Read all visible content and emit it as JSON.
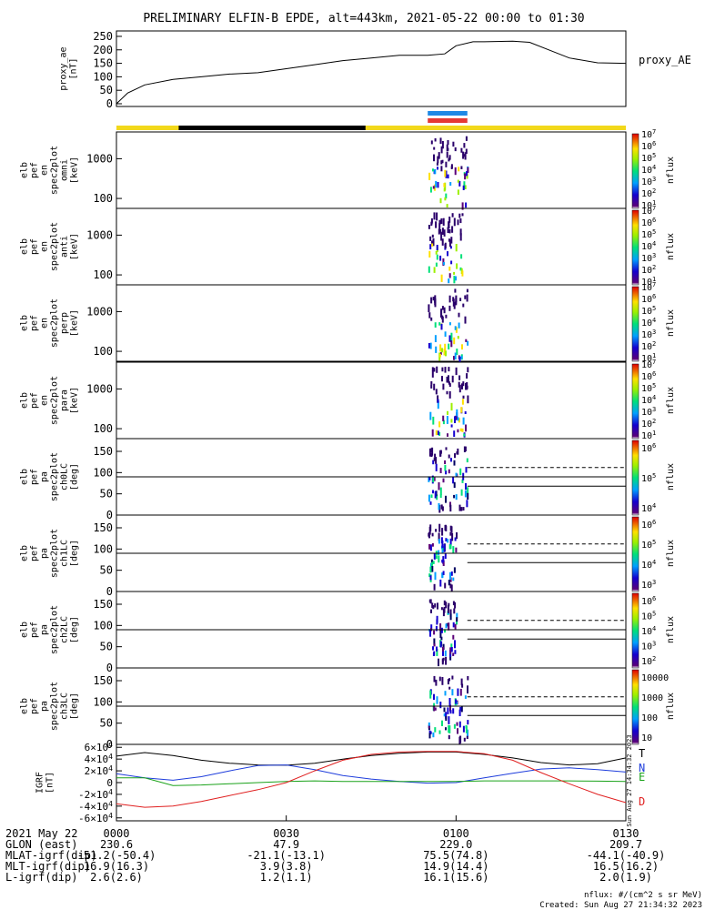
{
  "title": "PRELIMINARY ELFIN-B EPDE, alt=443km, 2021-05-22 00:00 to 01:30",
  "footer": {
    "units": "nflux: #/(cm^2 s sr MeV)",
    "created": "Created: Sun Aug 27 21:34:32 2023",
    "stamp": "Sun Aug 27 14:34:32 2023"
  },
  "orbit_bar": {
    "colors": [
      "#f2d81b",
      "#000000",
      "#f2d81b"
    ],
    "black_range": [
      "00:11",
      "00:44"
    ]
  },
  "science_zones": [
    {
      "color": "#1e88e5",
      "range": [
        "00:55",
        "01:02"
      ]
    },
    {
      "color": "#e53935",
      "range": [
        "00:55",
        "01:02"
      ]
    }
  ],
  "time_axis": {
    "start": "00:00",
    "end": "01:30",
    "ticks": [
      "0000",
      "0030",
      "0100",
      "0130"
    ],
    "rows": [
      {
        "label": "2021 May 22",
        "values": [
          "",
          "",
          "",
          ""
        ]
      },
      {
        "label": "GLON (east)",
        "values": [
          "230.6",
          "47.9",
          "229.0",
          "209.7"
        ]
      },
      {
        "label": "MLAT-igrf(dip)",
        "values": [
          "-51.2(-50.4)",
          "-21.1(-13.1)",
          "75.5(74.8)",
          "-44.1(-40.9)"
        ]
      },
      {
        "label": "MLT-igrf(dip)",
        "values": [
          "16.9(16.3)",
          "3.9(3.8)",
          "14.9(14.4)",
          "16.5(16.2)"
        ]
      },
      {
        "label": "L-igrf(dip)",
        "values": [
          "2.6(2.6)",
          "1.2(1.1)",
          "16.1(15.6)",
          "2.0(1.9)"
        ]
      }
    ]
  },
  "chart_data": [
    {
      "type": "line",
      "panel": "proxy_ae",
      "ylabel": [
        "proxy_ae",
        "[nT]"
      ],
      "ylim": [
        0,
        260
      ],
      "yticks": [
        "250",
        "200",
        "150",
        "100",
        "50",
        "0"
      ],
      "legend": "proxy_AE",
      "x": [
        "00:00",
        "00:02",
        "00:05",
        "00:10",
        "00:15",
        "00:20",
        "00:25",
        "00:30",
        "00:35",
        "00:40",
        "00:45",
        "00:50",
        "00:55",
        "00:58",
        "01:00",
        "01:03",
        "01:05",
        "01:10",
        "01:13",
        "01:17",
        "01:20",
        "01:25",
        "01:30"
      ],
      "values": [
        0,
        40,
        70,
        90,
        100,
        110,
        115,
        130,
        145,
        160,
        170,
        180,
        180,
        185,
        215,
        230,
        230,
        232,
        228,
        195,
        170,
        152,
        150
      ]
    },
    {
      "type": "heatmap",
      "panel": "spectrogram",
      "ylabel": [
        "elb",
        "pef",
        "en",
        "spec2plot",
        "omni",
        "[keV]"
      ],
      "yscale": "log",
      "yticks": [
        "1000",
        "100"
      ],
      "zlabel": "nflux",
      "zrange": [
        "10^1",
        "10^7"
      ],
      "active_time": [
        "00:55",
        "01:02"
      ]
    },
    {
      "type": "heatmap",
      "panel": "spectrogram",
      "ylabel": [
        "elb",
        "pef",
        "en",
        "spec2plot",
        "anti",
        "[keV]"
      ],
      "yscale": "log",
      "yticks": [
        "1000",
        "100"
      ],
      "zlabel": "nflux",
      "zrange": [
        "10^1",
        "10^7"
      ],
      "active_time": [
        "00:55",
        "01:01"
      ]
    },
    {
      "type": "heatmap",
      "panel": "spectrogram",
      "ylabel": [
        "elb",
        "pef",
        "en",
        "spec2plot",
        "perp",
        "[keV]"
      ],
      "yscale": "log",
      "yticks": [
        "1000",
        "100"
      ],
      "zlabel": "nflux",
      "zrange": [
        "10^1",
        "10^7"
      ],
      "active_time": [
        "00:55",
        "01:02"
      ]
    },
    {
      "type": "heatmap",
      "panel": "spectrogram",
      "ylabel": [
        "elb",
        "pef",
        "en",
        "spec2plot",
        "para",
        "[keV]"
      ],
      "yscale": "log",
      "yticks": [
        "1000",
        "100"
      ],
      "zlabel": "nflux",
      "zrange": [
        "10^1",
        "10^7"
      ],
      "active_time": [
        "00:55",
        "01:02"
      ]
    },
    {
      "type": "heatmap",
      "panel": "pitch-angle",
      "ylabel": [
        "elb",
        "pef",
        "pa",
        "spec2plot",
        "ch0LC",
        "[deg]"
      ],
      "ylim": [
        0,
        180
      ],
      "yticks": [
        "150",
        "100",
        "50",
        "0"
      ],
      "zlabel": "nflux",
      "zticks": [
        "10^6",
        "10^5",
        "10^4"
      ],
      "active_time": [
        "00:55",
        "01:02"
      ],
      "lines": {
        "solid": [
          90,
          68
        ],
        "dashed": 112,
        "dashed_from": "01:02"
      }
    },
    {
      "type": "heatmap",
      "panel": "pitch-angle",
      "ylabel": [
        "elb",
        "pef",
        "pa",
        "spec2plot",
        "ch1LC",
        "[deg]"
      ],
      "ylim": [
        0,
        180
      ],
      "yticks": [
        "150",
        "100",
        "50",
        "0"
      ],
      "zlabel": "nflux",
      "zticks": [
        "10^6",
        "10^5",
        "10^4",
        "10^3"
      ],
      "active_time": [
        "00:55",
        "01:00"
      ],
      "lines": {
        "solid": [
          90,
          68
        ],
        "dashed": 112,
        "dashed_from": "01:02"
      }
    },
    {
      "type": "heatmap",
      "panel": "pitch-angle",
      "ylabel": [
        "elb",
        "pef",
        "pa",
        "spec2plot",
        "ch2LC",
        "[deg]"
      ],
      "ylim": [
        0,
        180
      ],
      "yticks": [
        "150",
        "100",
        "50",
        "0"
      ],
      "zlabel": "nflux",
      "zticks": [
        "10^6",
        "10^5",
        "10^4",
        "10^3",
        "10^2"
      ],
      "active_time": [
        "00:55",
        "01:00"
      ],
      "lines": {
        "solid": [
          90,
          68
        ],
        "dashed": 112,
        "dashed_from": "01:02"
      }
    },
    {
      "type": "heatmap",
      "panel": "pitch-angle",
      "ylabel": [
        "elb",
        "pef",
        "pa",
        "spec2plot",
        "ch3LC",
        "[deg]"
      ],
      "ylim": [
        0,
        180
      ],
      "yticks": [
        "150",
        "100",
        "50",
        "0"
      ],
      "zlabel": "nflux",
      "zticks": [
        "10000",
        "1000",
        "100",
        "10"
      ],
      "active_time": [
        "00:55",
        "01:02"
      ],
      "lines": {
        "solid": [
          90,
          68
        ],
        "dashed": 112,
        "dashed_from": "01:02"
      }
    },
    {
      "type": "line",
      "panel": "igrf",
      "ylabel": [
        "IGRF",
        "[nT]"
      ],
      "ylim": [
        -65000,
        65000
      ],
      "yticks": [
        "6×10^4",
        "4×10^4",
        "2×10^4",
        "0",
        "-2×10^4",
        "-4×10^4",
        "-6×10^4"
      ],
      "x": [
        "00:00",
        "00:05",
        "00:10",
        "00:15",
        "00:20",
        "00:25",
        "00:30",
        "00:35",
        "00:40",
        "00:45",
        "00:50",
        "00:55",
        "01:00",
        "01:05",
        "01:10",
        "01:15",
        "01:20",
        "01:25",
        "01:30"
      ],
      "series": [
        {
          "name": "T",
          "color": "#000000",
          "values": [
            45000,
            51000,
            46000,
            38000,
            33000,
            30000,
            29500,
            33000,
            40000,
            46000,
            50000,
            52000,
            52000,
            48000,
            42000,
            34000,
            30000,
            32000,
            42000
          ]
        },
        {
          "name": "N",
          "color": "#1e3ddc",
          "values": [
            15000,
            8000,
            4000,
            10000,
            20000,
            29000,
            30000,
            22000,
            12000,
            6000,
            2000,
            -1000,
            0,
            8000,
            16000,
            23000,
            25000,
            22000,
            18000
          ]
        },
        {
          "name": "E",
          "color": "#1aa21a",
          "values": [
            8000,
            8000,
            -5000,
            -4000,
            -2000,
            0,
            2000,
            3000,
            2000,
            2000,
            2000,
            2000,
            2000,
            3000,
            3000,
            3000,
            3000,
            2500,
            2000
          ]
        },
        {
          "name": "D",
          "color": "#e02020",
          "values": [
            -36000,
            -42000,
            -40000,
            -32000,
            -22000,
            -12000,
            0,
            20000,
            38000,
            48000,
            52000,
            53000,
            53000,
            49000,
            38000,
            17000,
            -2000,
            -20000,
            -34000
          ]
        }
      ]
    }
  ]
}
